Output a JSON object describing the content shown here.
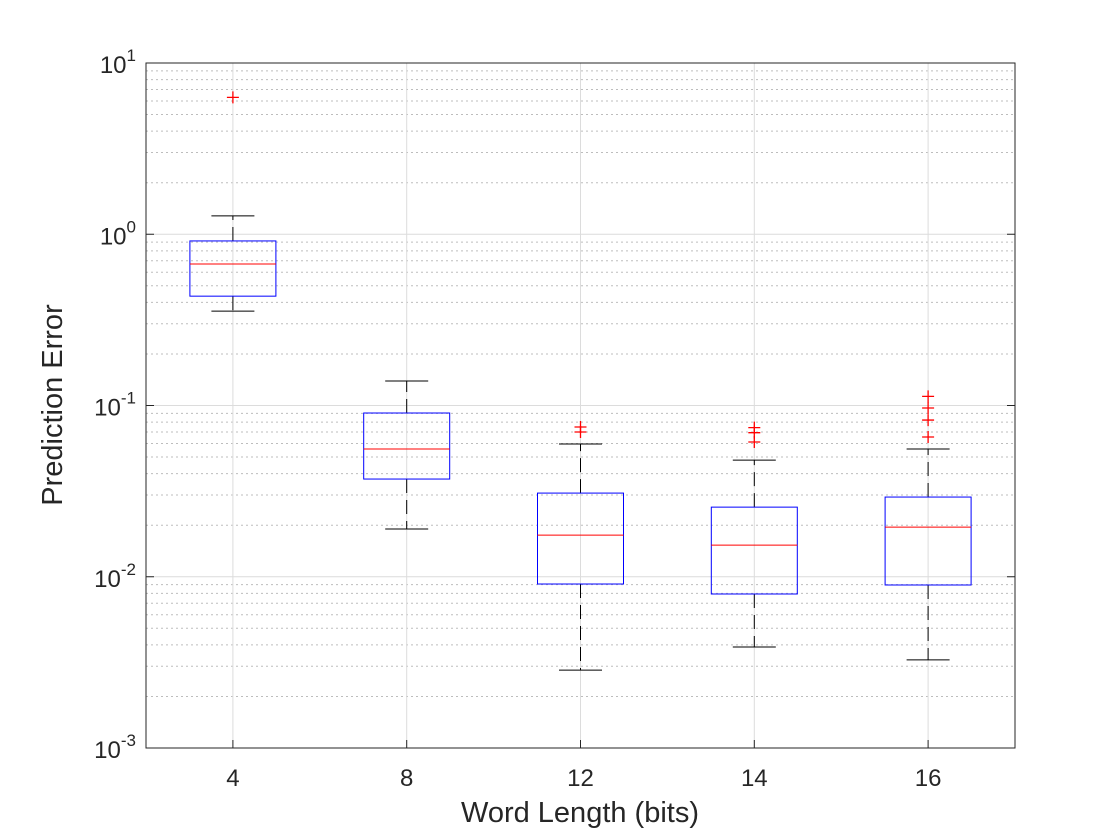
{
  "chart_data": {
    "type": "box",
    "x_label": "Word Length (bits)",
    "y_label": "Prediction Error",
    "categories": [
      "4",
      "8",
      "12",
      "14",
      "16"
    ],
    "whisker_high": [
      1.28,
      0.139,
      0.0596,
      0.048,
      0.0557
    ],
    "q3": [
      0.914,
      0.0904,
      0.0308,
      0.0255,
      0.0292
    ],
    "median": [
      0.67,
      0.0557,
      0.0175,
      0.0153,
      0.0195
    ],
    "q1": [
      0.435,
      0.0372,
      0.00907,
      0.00793,
      0.00895
    ],
    "whisker_low": [
      0.356,
      0.019,
      0.00285,
      0.00389,
      0.00327
    ],
    "outliers": [
      [
        6.3
      ],
      [],
      [
        0.0749,
        0.07
      ],
      [
        0.0743,
        0.0694,
        0.0612
      ],
      [
        0.113,
        0.0967,
        0.0822,
        0.0655
      ]
    ],
    "box_color": "#0000ff",
    "median_color": "#ff0000",
    "whisker_color": "#000000",
    "outlier_color": "#ff0000",
    "y_scale": "log",
    "ylim": [
      0.001,
      10
    ],
    "yticks": [
      {
        "value": 0.001,
        "label": "10",
        "exponent": "-3"
      },
      {
        "value": 0.01,
        "label": "10",
        "exponent": "-2"
      },
      {
        "value": 0.1,
        "label": "10",
        "exponent": "-1"
      },
      {
        "value": 1,
        "label": "10",
        "exponent": "0"
      },
      {
        "value": 10,
        "label": "10",
        "exponent": "1"
      }
    ],
    "grid": true,
    "minor_grid": true
  }
}
